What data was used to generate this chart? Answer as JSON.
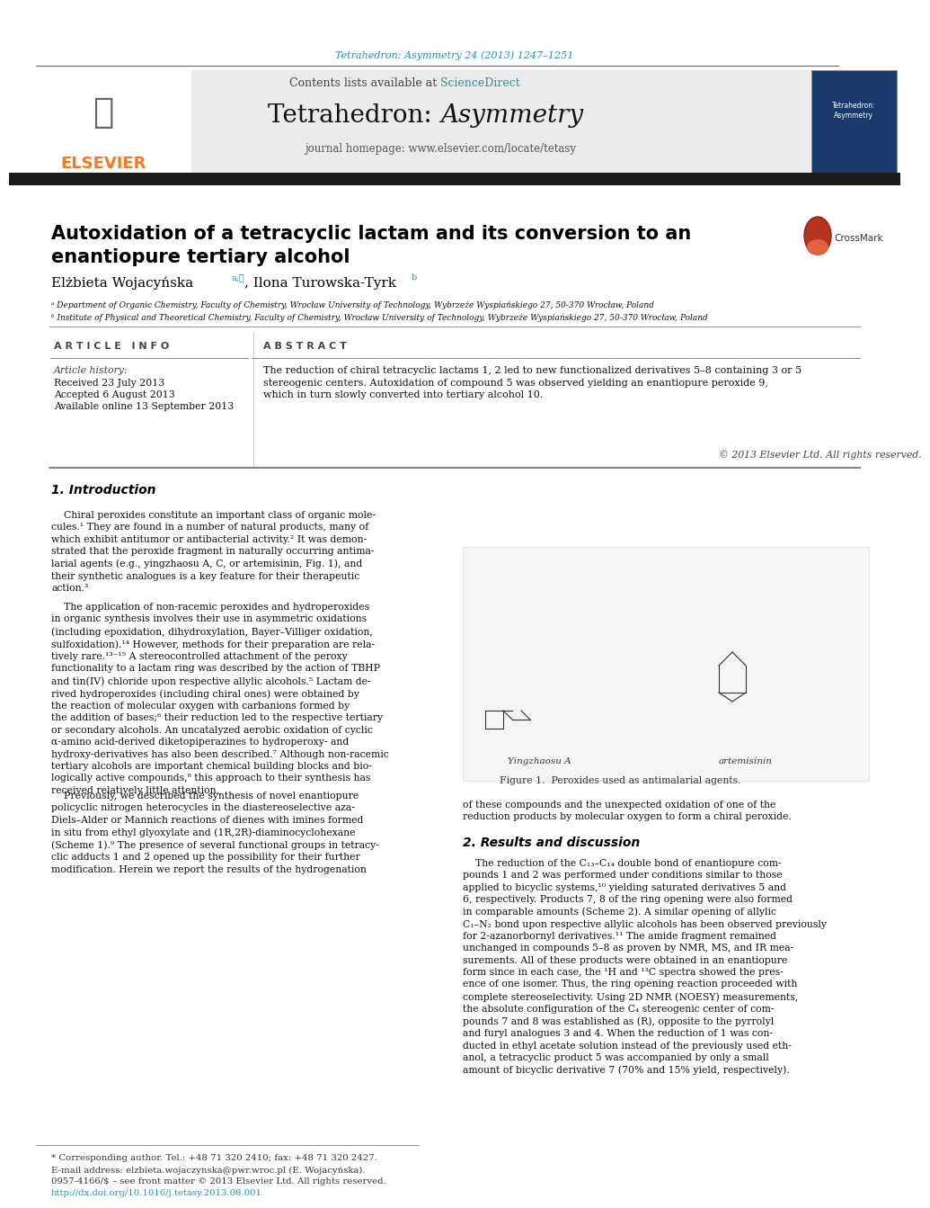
{
  "bg_color": "#ffffff",
  "journal_ref_text": "Tetrahedron: Asymmetry 24 (2013) 1247–1251",
  "journal_ref_color": "#2196a8",
  "header_contents_text": "Contents lists available at ",
  "header_sciencedirect_text": "ScienceDirect",
  "header_sciencedirect_color": "#2196a8",
  "header_homepage_text": "journal homepage: www.elsevier.com/locate/tetasy",
  "elsevier_color": "#f47920",
  "black_bar_color": "#1a1a1a",
  "title_text": "Autoxidation of a tetracyclic lactam and its conversion to an\nenantiopure tertiary alcohol",
  "affil_a": "ᵃ Department of Organic Chemistry, Faculty of Chemistry, Wrocław University of Technology, Wybrzeże Wyspiańskiego 27, 50-370 Wrocław, Poland",
  "affil_b": "ᵇ Institute of Physical and Theoretical Chemistry, Faculty of Chemistry, Wrocław University of Technology, Wybrzeże Wyspiańskiego 27, 50-370 Wrocław, Poland",
  "article_info_header": "A R T I C L E   I N F O",
  "abstract_header": "A B S T R A C T",
  "article_history_label": "Article history:",
  "received_text": "Received 23 July 2013",
  "accepted_text": "Accepted 6 August 2013",
  "available_text": "Available online 13 September 2013",
  "abstract_body": "The reduction of chiral tetracyclic lactams 1, 2 led to new functionalized derivatives 5–8 containing 3 or 5\nstereogenic centers. Autoxidation of compound 5 was observed yielding an enantiopure peroxide 9,\nwhich in turn slowly converted into tertiary alcohol 10.",
  "copyright_text": "© 2013 Elsevier Ltd. All rights reserved.",
  "intro_header": "1. Introduction",
  "intro_para1": "    Chiral peroxides constitute an important class of organic mole-\ncules.¹ They are found in a number of natural products, many of\nwhich exhibit antitumor or antibacterial activity.² It was demon-\nstrated that the peroxide fragment in naturally occurring antima-\nlarial agents (e.g., yingzhaosu A, C, or artemisinin, Fig. 1), and\ntheir synthetic analogues is a key feature for their therapeutic\naction.³",
  "intro_para2": "    The application of non-racemic peroxides and hydroperoxides\nin organic synthesis involves their use in asymmetric oxidations\n(including epoxidation, dihydroxylation, Bayer–Villiger oxidation,\nsulfoxidation).¹⁴ However, methods for their preparation are rela-\ntively rare.¹³⁻¹⁵ A stereocontrolled attachment of the peroxy\nfunctionality to a lactam ring was described by the action of TBHP\nand tin(IV) chloride upon respective allylic alcohols.⁵ Lactam de-\nrived hydroperoxides (including chiral ones) were obtained by\nthe reaction of molecular oxygen with carbanions formed by\nthe addition of bases;⁶ their reduction led to the respective tertiary\nor secondary alcohols. An uncatalyzed aerobic oxidation of cyclic\nα-amino acid-derived diketopiperazines to hydroperoxy- and\nhydroxy-derivatives has also been described.⁷ Although non-racemic\ntertiary alcohols are important chemical building blocks and bio-\nlogically active compounds,⁸ this approach to their synthesis has\nreceived relatively little attention.",
  "intro_para3": "    Previously, we described the synthesis of novel enantiopure\npolicyclic nitrogen heterocycles in the diastereoselective aza-\nDiels–Alder or Mannich reactions of dienes with imines formed\nin situ from ethyl glyoxylate and (1R,2R)-diaminocyclohexane\n(Scheme 1).⁹ The presence of several functional groups in tetracy-\nclic adducts 1 and 2 opened up the possibility for their further\nmodification. Herein we report the results of the hydrogenation",
  "right_col_para": "of these compounds and the unexpected oxidation of one of the\nreduction products by molecular oxygen to form a chiral peroxide.",
  "results_header": "2. Results and discussion",
  "results_para": "    The reduction of the C₁₃–C₁₄ double bond of enantiopure com-\npounds 1 and 2 was performed under conditions similar to those\napplied to bicyclic systems,¹⁰ yielding saturated derivatives 5 and\n6, respectively. Products 7, 8 of the ring opening were also formed\nin comparable amounts (Scheme 2). A similar opening of allylic\nC₁–N₂ bond upon respective allylic alcohols has been observed previously\nfor 2-azanorbornyl derivatives.¹¹ The amide fragment remained\nunchanged in compounds 5–8 as proven by NMR, MS, and IR mea-\nsurements. All of these products were obtained in an enantiopure\nform since in each case, the ¹H and ¹³C spectra showed the pres-\nence of one isomer. Thus, the ring opening reaction proceeded with\ncomplete stereoselectivity. Using 2D NMR (NOESY) measurements,\nthe absolute configuration of the C₄ stereogenic center of com-\npounds 7 and 8 was established as (R), opposite to the pyrrolyl\nand furyl analogues 3 and 4. When the reduction of 1 was con-\nducted in ethyl acetate solution instead of the previously used eth-\nanol, a tetracyclic product 5 was accompanied by only a small\namount of bicyclic derivative 7 (70% and 15% yield, respectively).",
  "figure1_caption": "Figure 1.  Peroxides used as antimalarial agents.",
  "footnote1": "* Corresponding author. Tel.: +48 71 320 2410; fax: +48 71 320 2427.",
  "footnote2": "E-mail address: elzbieta.wojaczynska@pwr.wroc.pl (E. Wojacyńska).",
  "footnote3": "0957-4166/$ – see front matter © 2013 Elsevier Ltd. All rights reserved.",
  "footnote4": "http://dx.doi.org/10.1016/j.tetasy.2013.08.001",
  "yingzhaosu_label": "Yingzhaosu A",
  "artemisinin_label": "artemisinin"
}
